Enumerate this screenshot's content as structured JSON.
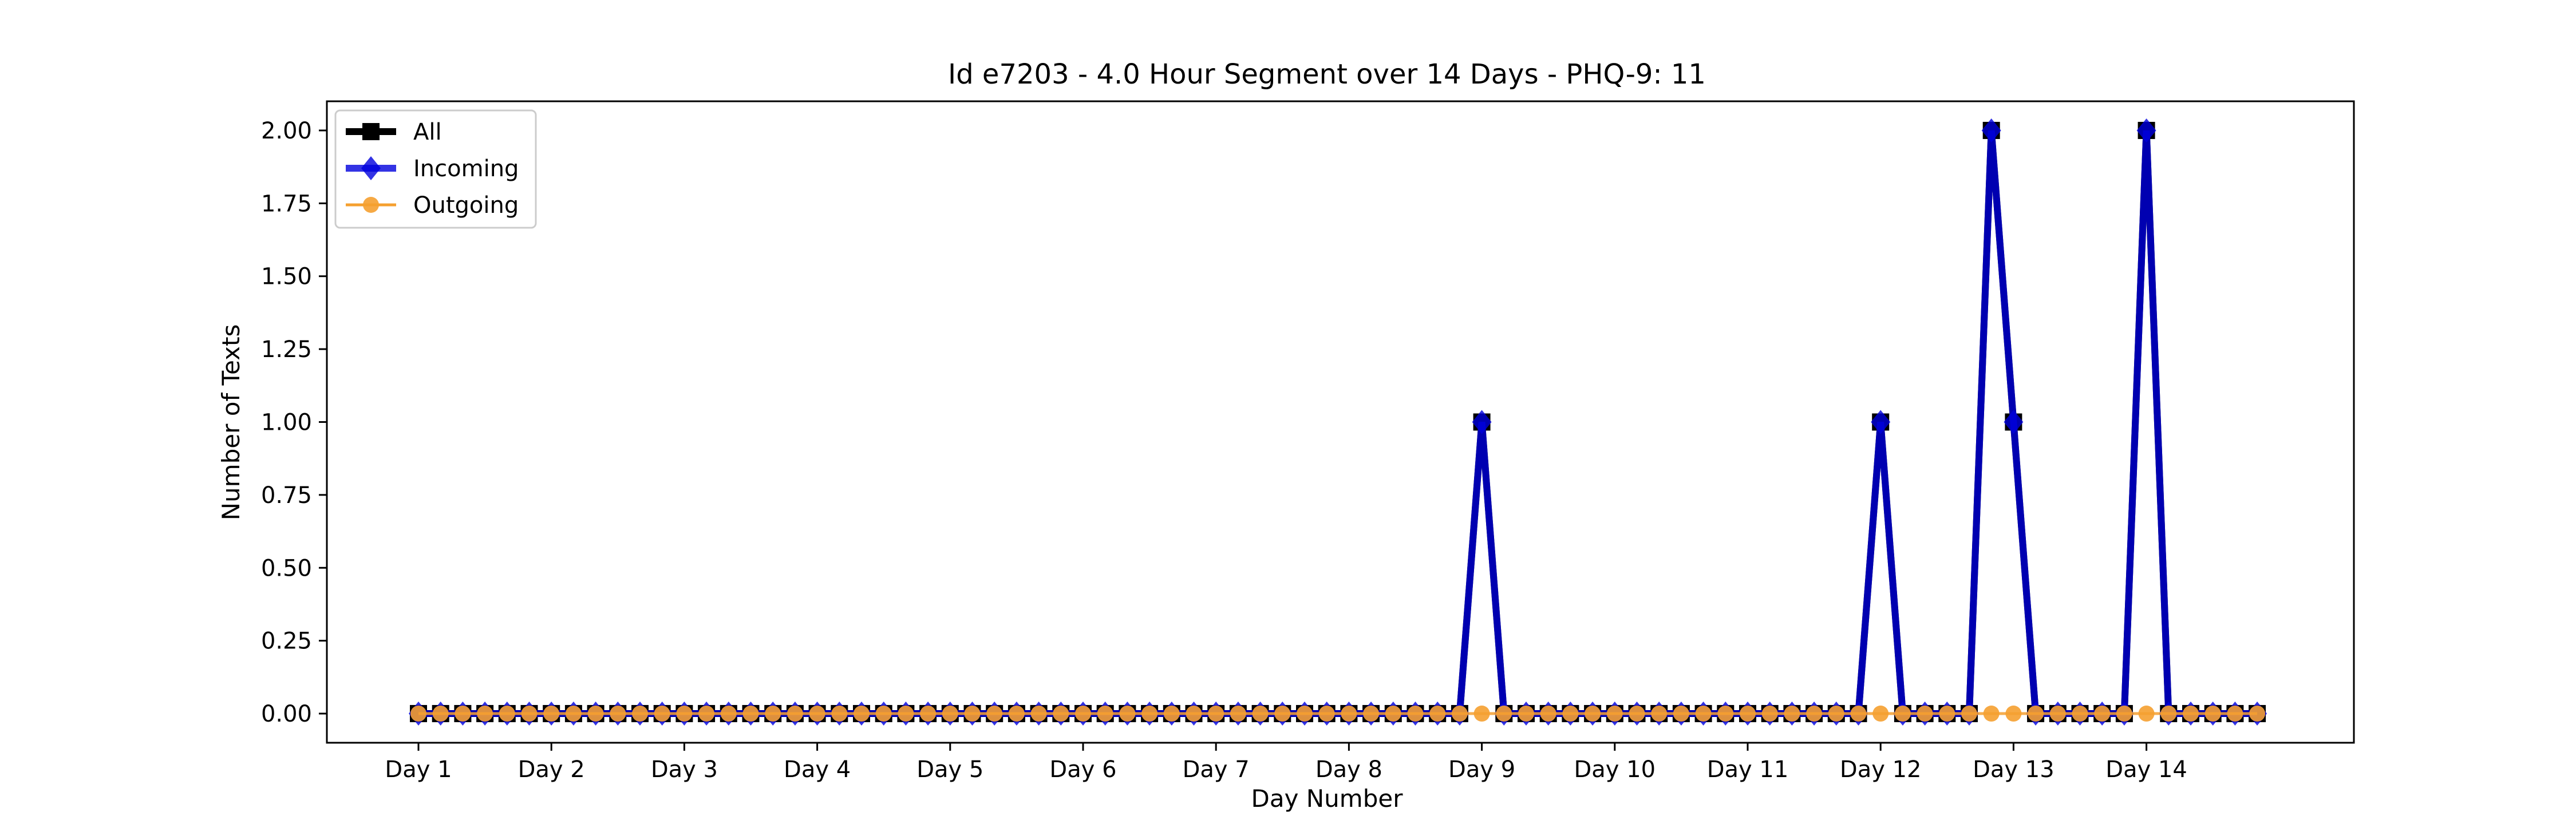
{
  "chart_data": {
    "type": "line",
    "title": "Id e7203 - 4.0 Hour Segment over 14 Days - PHQ-9: 11",
    "xlabel": "Day Number",
    "ylabel": "Number of Texts",
    "ylim": [
      -0.1,
      2.1
    ],
    "yticks": [
      "0.00",
      "0.25",
      "0.50",
      "0.75",
      "1.00",
      "1.25",
      "1.50",
      "1.75",
      "2.00"
    ],
    "xtick_labels": [
      "Day 1",
      "Day 2",
      "Day 3",
      "Day 4",
      "Day 5",
      "Day 6",
      "Day 7",
      "Day 8",
      "Day 9",
      "Day 10",
      "Day 11",
      "Day 12",
      "Day 13",
      "Day 14"
    ],
    "segments_per_day": 6,
    "grid": false,
    "legend_position": "upper-left",
    "series": [
      {
        "name": "All",
        "color": "#000000",
        "marker": "square",
        "values": [
          0,
          0,
          0,
          0,
          0,
          0,
          0,
          0,
          0,
          0,
          0,
          0,
          0,
          0,
          0,
          0,
          0,
          0,
          0,
          0,
          0,
          0,
          0,
          0,
          0,
          0,
          0,
          0,
          0,
          0,
          0,
          0,
          0,
          0,
          0,
          0,
          0,
          0,
          0,
          0,
          0,
          0,
          0,
          0,
          0,
          0,
          0,
          0,
          1,
          0,
          0,
          0,
          0,
          0,
          0,
          0,
          0,
          0,
          0,
          0,
          0,
          0,
          0,
          0,
          0,
          0,
          1,
          0,
          0,
          0,
          0,
          2,
          1,
          0,
          0,
          0,
          0,
          0,
          2,
          0,
          0,
          0,
          0,
          0
        ]
      },
      {
        "name": "Incoming",
        "color": "#0000dd",
        "marker": "diamond",
        "values": [
          0,
          0,
          0,
          0,
          0,
          0,
          0,
          0,
          0,
          0,
          0,
          0,
          0,
          0,
          0,
          0,
          0,
          0,
          0,
          0,
          0,
          0,
          0,
          0,
          0,
          0,
          0,
          0,
          0,
          0,
          0,
          0,
          0,
          0,
          0,
          0,
          0,
          0,
          0,
          0,
          0,
          0,
          0,
          0,
          0,
          0,
          0,
          0,
          1,
          0,
          0,
          0,
          0,
          0,
          0,
          0,
          0,
          0,
          0,
          0,
          0,
          0,
          0,
          0,
          0,
          0,
          1,
          0,
          0,
          0,
          0,
          2,
          1,
          0,
          0,
          0,
          0,
          0,
          2,
          0,
          0,
          0,
          0,
          0
        ]
      },
      {
        "name": "Outgoing",
        "color": "#f5a030",
        "marker": "circle",
        "values": [
          0,
          0,
          0,
          0,
          0,
          0,
          0,
          0,
          0,
          0,
          0,
          0,
          0,
          0,
          0,
          0,
          0,
          0,
          0,
          0,
          0,
          0,
          0,
          0,
          0,
          0,
          0,
          0,
          0,
          0,
          0,
          0,
          0,
          0,
          0,
          0,
          0,
          0,
          0,
          0,
          0,
          0,
          0,
          0,
          0,
          0,
          0,
          0,
          0,
          0,
          0,
          0,
          0,
          0,
          0,
          0,
          0,
          0,
          0,
          0,
          0,
          0,
          0,
          0,
          0,
          0,
          0,
          0,
          0,
          0,
          0,
          0,
          0,
          0,
          0,
          0,
          0,
          0,
          0,
          0,
          0,
          0,
          0,
          0
        ]
      }
    ]
  }
}
